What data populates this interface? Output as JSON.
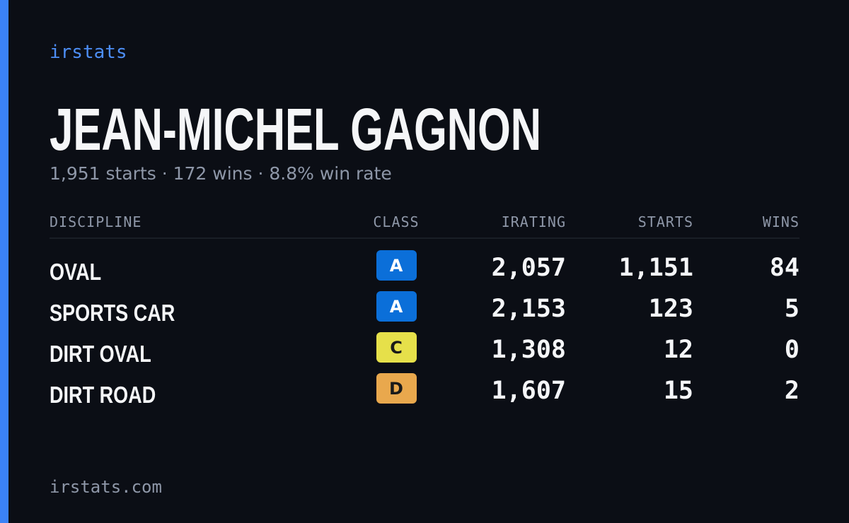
{
  "brand": "irstats",
  "name": "JEAN-MICHEL GAGNON",
  "summary": "1,951 starts · 172 wins · 8.8% win rate",
  "table": {
    "headers": [
      "DISCIPLINE",
      "CLASS",
      "IRATING",
      "STARTS",
      "WINS"
    ],
    "rows": [
      {
        "discipline": "OVAL",
        "class": "A",
        "class_color": "#0b6fd9",
        "irating": "2,057",
        "starts": "1,151",
        "wins": "84"
      },
      {
        "discipline": "SPORTS CAR",
        "class": "A",
        "class_color": "#0b6fd9",
        "irating": "2,153",
        "starts": "123",
        "wins": "5"
      },
      {
        "discipline": "DIRT OVAL",
        "class": "C",
        "class_color": "#e6e04a",
        "irating": "1,308",
        "starts": "12",
        "wins": "0"
      },
      {
        "discipline": "DIRT ROAD",
        "class": "D",
        "class_color": "#e9a84d",
        "irating": "1,607",
        "starts": "15",
        "wins": "2"
      }
    ]
  },
  "footer": "irstats.com"
}
